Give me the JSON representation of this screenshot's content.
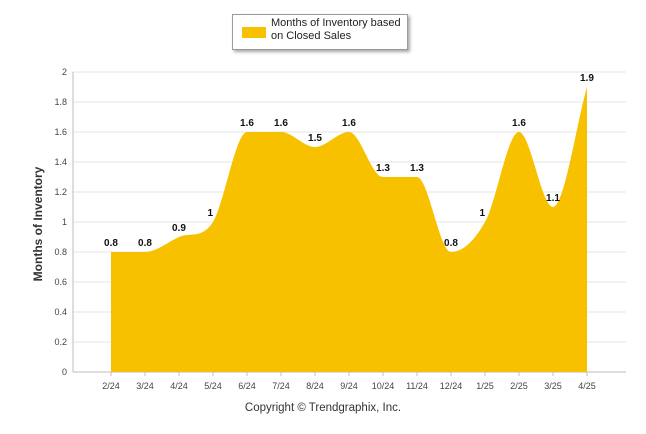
{
  "legend": {
    "label": "Months of Inventory based on Closed Sales"
  },
  "footer": {
    "copyright": "Copyright © Trendgraphix, Inc."
  },
  "colors": {
    "fill": "#F7C100",
    "grid": "#e6e6e6",
    "axis": "#bdbdbd"
  },
  "chart_data": {
    "type": "area",
    "categories": [
      "2/24",
      "3/24",
      "4/24",
      "5/24",
      "6/24",
      "7/24",
      "8/24",
      "9/24",
      "10/24",
      "11/24",
      "12/24",
      "1/25",
      "2/25",
      "3/25",
      "4/25"
    ],
    "series": [
      {
        "name": "Months of Inventory based on Closed Sales",
        "values": [
          0.8,
          0.8,
          0.9,
          1,
          1.6,
          1.6,
          1.5,
          1.6,
          1.3,
          1.3,
          0.8,
          1,
          1.6,
          1.1,
          1.9
        ]
      }
    ],
    "data_labels": [
      "0.8",
      "0.8",
      "0.9",
      "1",
      "1.6",
      "1.6",
      "1.5",
      "1.6",
      "1.3",
      "1.3",
      "0.8",
      "1",
      "1.6",
      "1.1",
      "1.9"
    ],
    "ylabel": "Months of Inventory",
    "ylim": [
      0,
      2
    ],
    "yticks": [
      "0",
      "0.2",
      "0.4",
      "0.6",
      "0.8",
      "1",
      "1.2",
      "1.4",
      "1.6",
      "1.8",
      "2"
    ],
    "grid": true,
    "legend_position": "top-center"
  }
}
